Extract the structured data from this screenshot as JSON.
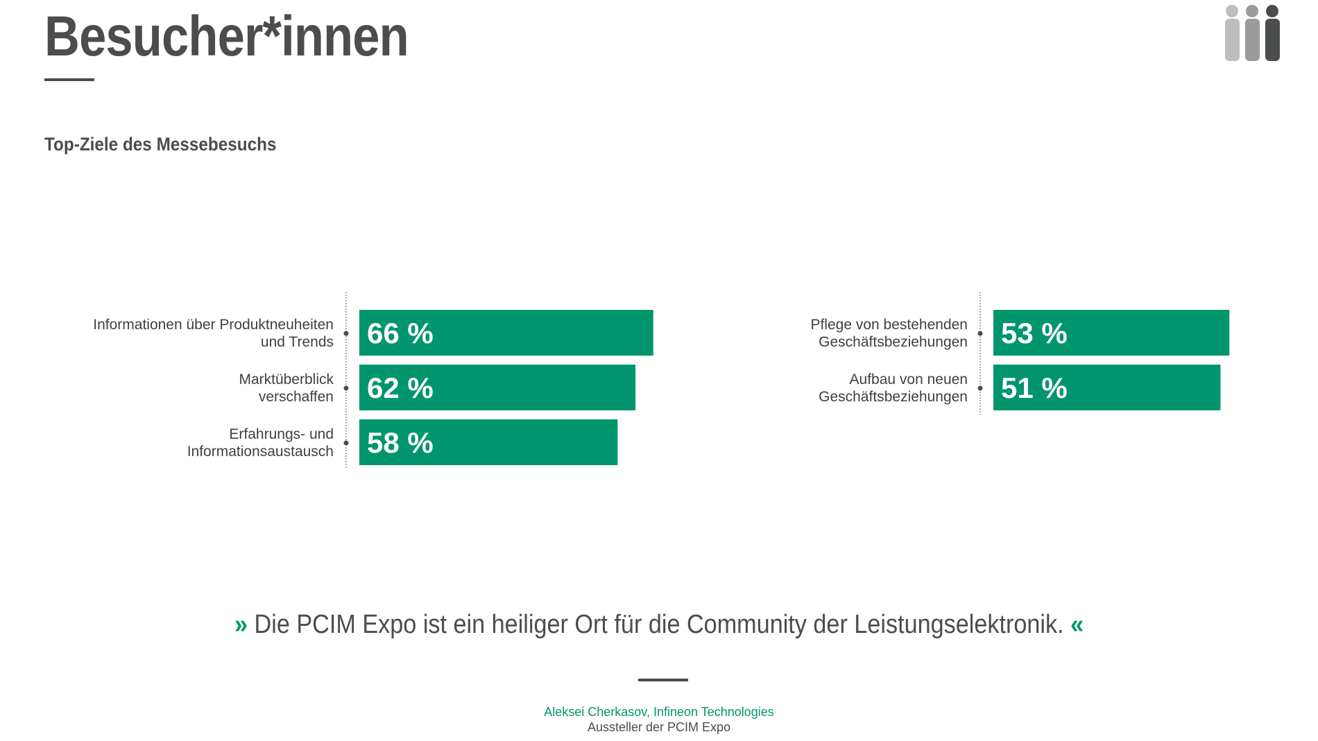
{
  "header": {
    "title": "Besucher*innen"
  },
  "subtitle": "Top-Ziele des Messebesuchs",
  "colors": {
    "bar": "#00956d",
    "text": "#4a4c4e",
    "icon_light": "#bdbdbd",
    "icon_mid": "#9b9b9b",
    "icon_dark": "#4a4c4e"
  },
  "icons": {
    "people": "people-group-icon",
    "quote_open": "double-chevron-right-icon",
    "quote_close": "double-chevron-left-icon"
  },
  "chart_data": [
    {
      "type": "bar",
      "orientation": "horizontal",
      "unit": "%",
      "xlim": [
        0,
        100
      ],
      "categories": [
        [
          "Informationen über Produktneuheiten",
          "und Trends"
        ],
        [
          "Marktüberblick",
          "verschaffen"
        ],
        [
          "Erfahrungs- und",
          "Informationsaustausch"
        ]
      ],
      "values": [
        66,
        62,
        58
      ],
      "value_labels": [
        "66 %",
        "62 %",
        "58 %"
      ]
    },
    {
      "type": "bar",
      "orientation": "horizontal",
      "unit": "%",
      "xlim": [
        0,
        100
      ],
      "categories": [
        [
          "Pflege von bestehenden",
          "Geschäftsbeziehungen"
        ],
        [
          "Aufbau von neuen",
          "Geschäftsbeziehungen"
        ]
      ],
      "values": [
        53,
        51
      ],
      "value_labels": [
        "53 %",
        "51 %"
      ]
    }
  ],
  "quote": {
    "open": "»",
    "text": "Die PCIM Expo ist ein heiliger Ort für die Community der Leistungselektronik.",
    "close": "«"
  },
  "attribution": {
    "name": "Aleksei Cherkasov, Infineon Technologies",
    "role": "Aussteller der PCIM Expo"
  }
}
